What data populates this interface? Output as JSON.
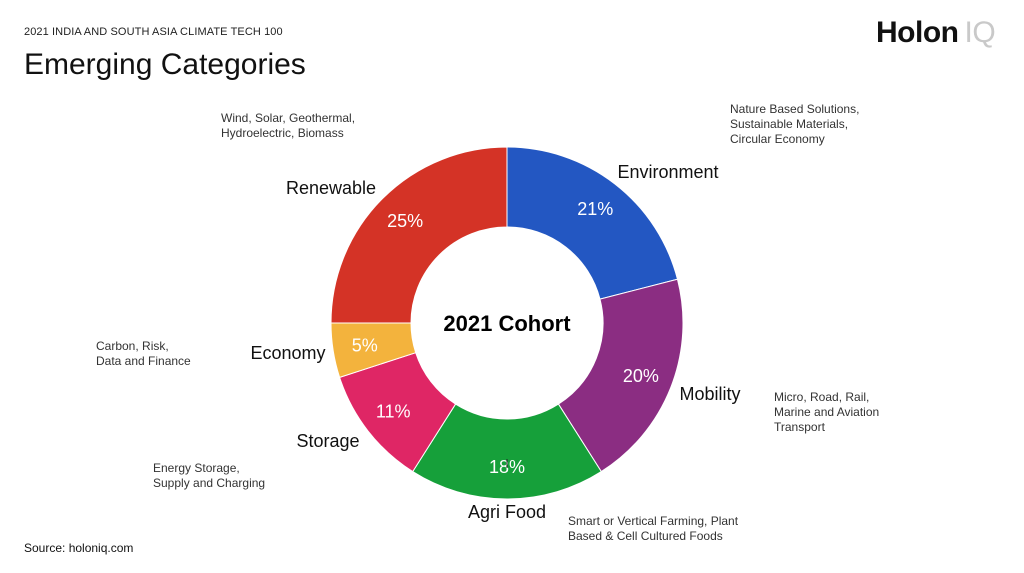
{
  "header": {
    "supertitle": "2021 INDIA AND SOUTH ASIA CLIMATE TECH 100",
    "title": "Emerging Categories",
    "logo_main": "Holon",
    "logo_light": "IQ"
  },
  "footer": {
    "source": "Source: holoniq.com"
  },
  "chart_data": {
    "type": "pie",
    "title": "Emerging Categories",
    "center_label": "2021 Cohort",
    "slices": [
      {
        "name": "Environment",
        "value": 21,
        "label": "21%",
        "color": "#2357c2",
        "description": [
          "Nature Based Solutions,",
          "Sustainable Materials,",
          "Circular Economy"
        ]
      },
      {
        "name": "Mobility",
        "value": 20,
        "label": "20%",
        "color": "#8b2d82",
        "description": [
          "Micro, Road, Rail,",
          "Marine and Aviation",
          "Transport"
        ]
      },
      {
        "name": "Agri Food",
        "value": 18,
        "label": "18%",
        "color": "#16a03a",
        "description": [
          "Smart or Vertical Farming, Plant",
          "Based & Cell Cultured Foods"
        ]
      },
      {
        "name": "Storage",
        "value": 11,
        "label": "11%",
        "color": "#df2665",
        "description": [
          "Energy Storage,",
          "Supply and Charging"
        ]
      },
      {
        "name": "Economy",
        "value": 5,
        "label": "5%",
        "color": "#f3b33d",
        "description": [
          "Carbon, Risk,",
          "Data and Finance"
        ]
      },
      {
        "name": "Renewable",
        "value": 25,
        "label": "25%",
        "color": "#d43326",
        "description": [
          "Wind, Solar, Geothermal,",
          "Hydroelectric, Biomass"
        ]
      }
    ]
  }
}
